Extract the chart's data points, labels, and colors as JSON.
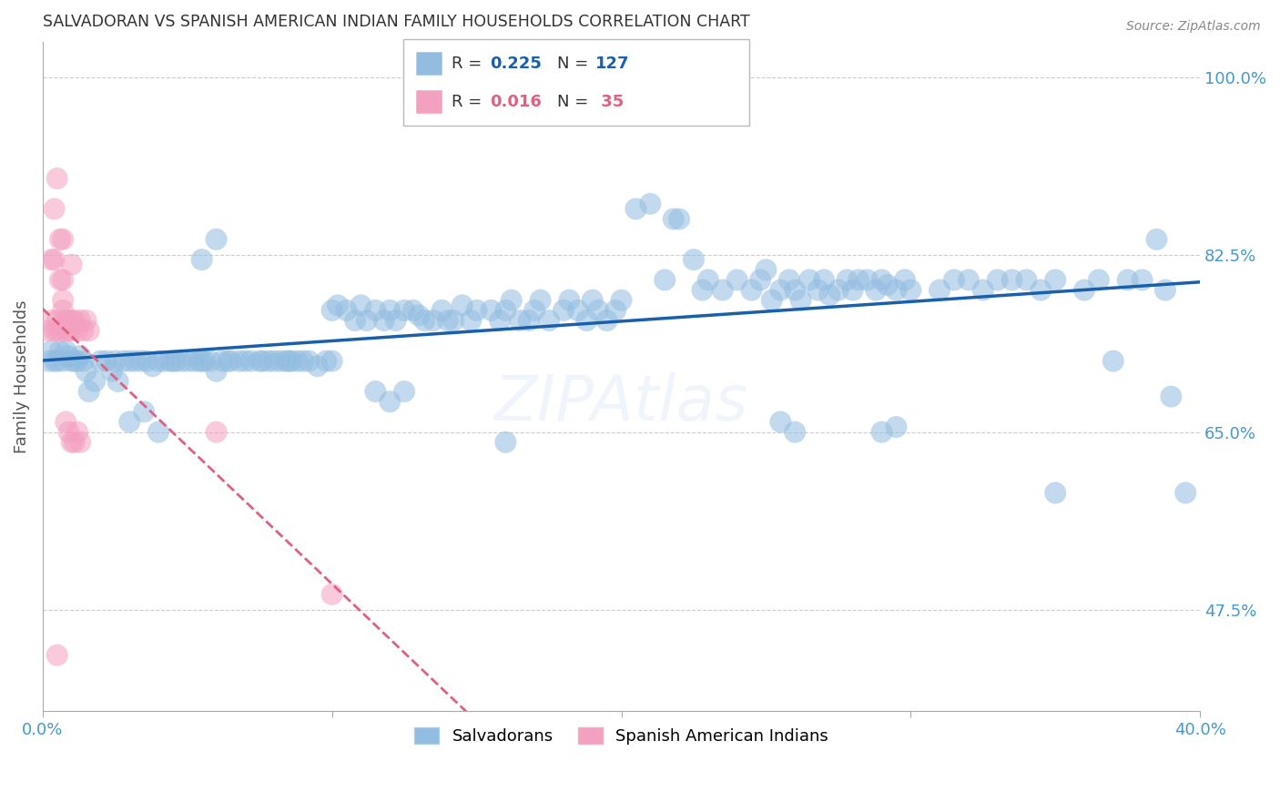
{
  "title": "SALVADORAN VS SPANISH AMERICAN INDIAN FAMILY HOUSEHOLDS CORRELATION CHART",
  "source": "Source: ZipAtlas.com",
  "ylabel": "Family Households",
  "yticks_pct": [
    47.5,
    65.0,
    82.5,
    100.0
  ],
  "xlim": [
    0.0,
    0.4
  ],
  "ylim": [
    0.375,
    1.035
  ],
  "blue_color": "#92BDE0",
  "pink_color": "#F4A0C0",
  "trendline_blue": "#1A5FAA",
  "trendline_pink": "#E06080",
  "background": "#FFFFFF",
  "grid_color": "#CCCCCC",
  "axis_label_color": "#4499CC",
  "title_color": "#333333",
  "blue_scatter": [
    [
      0.002,
      0.72
    ],
    [
      0.003,
      0.73
    ],
    [
      0.004,
      0.72
    ],
    [
      0.005,
      0.72
    ],
    [
      0.006,
      0.73
    ],
    [
      0.007,
      0.72
    ],
    [
      0.008,
      0.73
    ],
    [
      0.009,
      0.725
    ],
    [
      0.01,
      0.72
    ],
    [
      0.011,
      0.72
    ],
    [
      0.012,
      0.72
    ],
    [
      0.013,
      0.725
    ],
    [
      0.014,
      0.72
    ],
    [
      0.015,
      0.71
    ],
    [
      0.016,
      0.69
    ],
    [
      0.018,
      0.7
    ],
    [
      0.02,
      0.72
    ],
    [
      0.022,
      0.72
    ],
    [
      0.024,
      0.71
    ],
    [
      0.025,
      0.72
    ],
    [
      0.026,
      0.7
    ],
    [
      0.028,
      0.72
    ],
    [
      0.03,
      0.72
    ],
    [
      0.032,
      0.72
    ],
    [
      0.034,
      0.72
    ],
    [
      0.036,
      0.72
    ],
    [
      0.038,
      0.715
    ],
    [
      0.04,
      0.72
    ],
    [
      0.042,
      0.72
    ],
    [
      0.044,
      0.72
    ],
    [
      0.045,
      0.72
    ],
    [
      0.046,
      0.72
    ],
    [
      0.048,
      0.72
    ],
    [
      0.05,
      0.72
    ],
    [
      0.052,
      0.72
    ],
    [
      0.054,
      0.72
    ],
    [
      0.055,
      0.72
    ],
    [
      0.056,
      0.72
    ],
    [
      0.058,
      0.72
    ],
    [
      0.06,
      0.71
    ],
    [
      0.062,
      0.72
    ],
    [
      0.064,
      0.72
    ],
    [
      0.065,
      0.72
    ],
    [
      0.068,
      0.72
    ],
    [
      0.07,
      0.72
    ],
    [
      0.072,
      0.72
    ],
    [
      0.075,
      0.72
    ],
    [
      0.076,
      0.72
    ],
    [
      0.078,
      0.72
    ],
    [
      0.08,
      0.72
    ],
    [
      0.082,
      0.72
    ],
    [
      0.084,
      0.72
    ],
    [
      0.085,
      0.72
    ],
    [
      0.086,
      0.72
    ],
    [
      0.088,
      0.72
    ],
    [
      0.09,
      0.72
    ],
    [
      0.092,
      0.72
    ],
    [
      0.095,
      0.715
    ],
    [
      0.098,
      0.72
    ],
    [
      0.1,
      0.72
    ],
    [
      0.03,
      0.66
    ],
    [
      0.035,
      0.67
    ],
    [
      0.04,
      0.65
    ],
    [
      0.055,
      0.82
    ],
    [
      0.06,
      0.84
    ],
    [
      0.1,
      0.77
    ],
    [
      0.102,
      0.775
    ],
    [
      0.105,
      0.77
    ],
    [
      0.108,
      0.76
    ],
    [
      0.11,
      0.775
    ],
    [
      0.112,
      0.76
    ],
    [
      0.115,
      0.77
    ],
    [
      0.118,
      0.76
    ],
    [
      0.12,
      0.77
    ],
    [
      0.122,
      0.76
    ],
    [
      0.125,
      0.77
    ],
    [
      0.128,
      0.77
    ],
    [
      0.13,
      0.765
    ],
    [
      0.132,
      0.76
    ],
    [
      0.135,
      0.76
    ],
    [
      0.138,
      0.77
    ],
    [
      0.14,
      0.76
    ],
    [
      0.142,
      0.76
    ],
    [
      0.145,
      0.775
    ],
    [
      0.148,
      0.76
    ],
    [
      0.15,
      0.77
    ],
    [
      0.155,
      0.77
    ],
    [
      0.158,
      0.76
    ],
    [
      0.16,
      0.77
    ],
    [
      0.162,
      0.78
    ],
    [
      0.165,
      0.76
    ],
    [
      0.168,
      0.76
    ],
    [
      0.17,
      0.77
    ],
    [
      0.172,
      0.78
    ],
    [
      0.175,
      0.76
    ],
    [
      0.115,
      0.69
    ],
    [
      0.12,
      0.68
    ],
    [
      0.125,
      0.69
    ],
    [
      0.16,
      0.64
    ],
    [
      0.18,
      0.77
    ],
    [
      0.182,
      0.78
    ],
    [
      0.185,
      0.77
    ],
    [
      0.188,
      0.76
    ],
    [
      0.19,
      0.78
    ],
    [
      0.192,
      0.77
    ],
    [
      0.195,
      0.76
    ],
    [
      0.198,
      0.77
    ],
    [
      0.2,
      0.78
    ],
    [
      0.205,
      0.87
    ],
    [
      0.21,
      0.875
    ],
    [
      0.215,
      0.8
    ],
    [
      0.218,
      0.86
    ],
    [
      0.22,
      0.86
    ],
    [
      0.225,
      0.82
    ],
    [
      0.228,
      0.79
    ],
    [
      0.23,
      0.8
    ],
    [
      0.235,
      0.79
    ],
    [
      0.24,
      0.8
    ],
    [
      0.245,
      0.79
    ],
    [
      0.248,
      0.8
    ],
    [
      0.25,
      0.81
    ],
    [
      0.252,
      0.78
    ],
    [
      0.255,
      0.79
    ],
    [
      0.258,
      0.8
    ],
    [
      0.26,
      0.79
    ],
    [
      0.262,
      0.78
    ],
    [
      0.265,
      0.8
    ],
    [
      0.268,
      0.79
    ],
    [
      0.27,
      0.8
    ],
    [
      0.272,
      0.785
    ],
    [
      0.275,
      0.79
    ],
    [
      0.278,
      0.8
    ],
    [
      0.28,
      0.79
    ],
    [
      0.282,
      0.8
    ],
    [
      0.285,
      0.8
    ],
    [
      0.288,
      0.79
    ],
    [
      0.29,
      0.8
    ],
    [
      0.292,
      0.795
    ],
    [
      0.295,
      0.79
    ],
    [
      0.298,
      0.8
    ],
    [
      0.3,
      0.79
    ],
    [
      0.255,
      0.66
    ],
    [
      0.26,
      0.65
    ],
    [
      0.31,
      0.79
    ],
    [
      0.315,
      0.8
    ],
    [
      0.32,
      0.8
    ],
    [
      0.325,
      0.79
    ],
    [
      0.33,
      0.8
    ],
    [
      0.335,
      0.8
    ],
    [
      0.34,
      0.8
    ],
    [
      0.345,
      0.79
    ],
    [
      0.35,
      0.8
    ],
    [
      0.29,
      0.65
    ],
    [
      0.295,
      0.655
    ],
    [
      0.36,
      0.79
    ],
    [
      0.365,
      0.8
    ],
    [
      0.37,
      0.72
    ],
    [
      0.375,
      0.8
    ],
    [
      0.38,
      0.8
    ],
    [
      0.35,
      0.59
    ],
    [
      0.385,
      0.84
    ],
    [
      0.388,
      0.79
    ],
    [
      0.39,
      0.685
    ],
    [
      0.395,
      0.59
    ]
  ],
  "pink_scatter": [
    [
      0.002,
      0.75
    ],
    [
      0.003,
      0.76
    ],
    [
      0.004,
      0.75
    ],
    [
      0.005,
      0.76
    ],
    [
      0.005,
      0.75
    ],
    [
      0.006,
      0.75
    ],
    [
      0.007,
      0.77
    ],
    [
      0.007,
      0.78
    ],
    [
      0.008,
      0.75
    ],
    [
      0.008,
      0.76
    ],
    [
      0.009,
      0.76
    ],
    [
      0.009,
      0.75
    ],
    [
      0.01,
      0.76
    ],
    [
      0.01,
      0.75
    ],
    [
      0.011,
      0.76
    ],
    [
      0.012,
      0.75
    ],
    [
      0.013,
      0.76
    ],
    [
      0.014,
      0.75
    ],
    [
      0.015,
      0.76
    ],
    [
      0.016,
      0.75
    ],
    [
      0.004,
      0.87
    ],
    [
      0.005,
      0.9
    ],
    [
      0.006,
      0.84
    ],
    [
      0.007,
      0.84
    ],
    [
      0.003,
      0.82
    ],
    [
      0.004,
      0.82
    ],
    [
      0.006,
      0.8
    ],
    [
      0.007,
      0.8
    ],
    [
      0.01,
      0.815
    ],
    [
      0.008,
      0.66
    ],
    [
      0.009,
      0.65
    ],
    [
      0.01,
      0.64
    ],
    [
      0.011,
      0.64
    ],
    [
      0.012,
      0.65
    ],
    [
      0.013,
      0.64
    ],
    [
      0.06,
      0.65
    ],
    [
      0.1,
      0.49
    ],
    [
      0.005,
      0.43
    ]
  ]
}
